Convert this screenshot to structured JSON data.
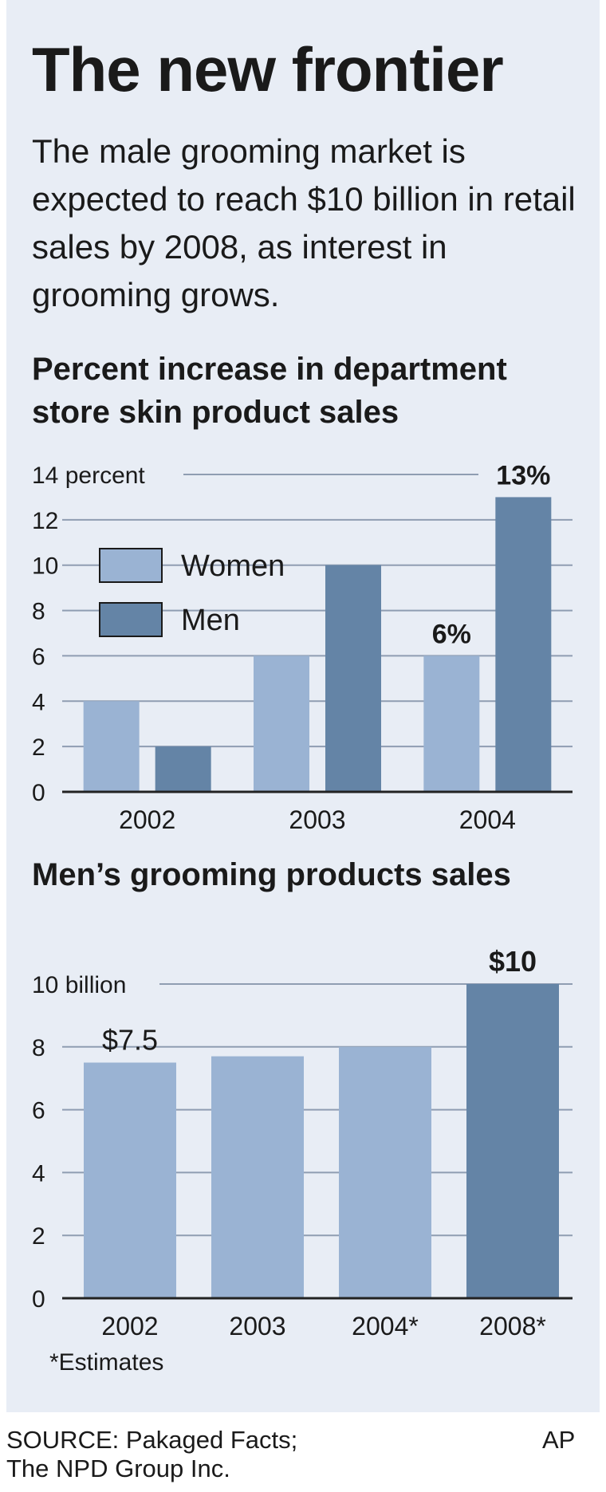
{
  "headline": "The new frontier",
  "intro": "The male grooming market is expected to reach $10 billion in retail sales by 2008, as interest in grooming grows.",
  "colors": {
    "women": "#9ab3d3",
    "men": "#6484a6",
    "background": "#e8edf5",
    "grid": "#8f9db2"
  },
  "chart_data": [
    {
      "type": "bar",
      "title": "Percent increase in department store skin product sales",
      "categories": [
        "2002",
        "2003",
        "2004"
      ],
      "series": [
        {
          "name": "Women",
          "values": [
            4,
            6,
            6
          ]
        },
        {
          "name": "Men",
          "values": [
            2,
            10,
            13
          ]
        }
      ],
      "ylim": [
        0,
        14
      ],
      "yticks": [
        0,
        2,
        4,
        6,
        8,
        10,
        12,
        14
      ],
      "top_tick_label": "14 percent",
      "data_labels": [
        {
          "series": "Women",
          "category": "2004",
          "text": "6%"
        },
        {
          "series": "Men",
          "category": "2004",
          "text": "13%"
        }
      ],
      "legend_placement": "upper-left",
      "grid": true
    },
    {
      "type": "bar",
      "title": "Men’s grooming products sales",
      "categories": [
        "2002",
        "2003",
        "2004*",
        "2008*"
      ],
      "values": [
        7.5,
        7.7,
        8,
        10
      ],
      "highlight_index": 3,
      "ylim": [
        0,
        10
      ],
      "yticks": [
        0,
        2,
        4,
        6,
        8,
        10
      ],
      "top_tick_label": "10 billion",
      "data_labels": [
        {
          "category": "2002",
          "text": "$7.5"
        },
        {
          "category": "2008*",
          "text": "$10"
        }
      ],
      "note": "*Estimates",
      "grid": true
    }
  ],
  "source": "SOURCE: Pakaged Facts;\nThe NPD Group Inc.",
  "credit": "AP"
}
